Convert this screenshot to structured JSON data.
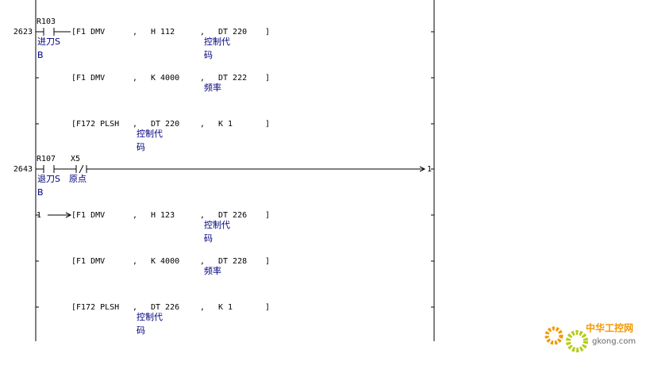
{
  "separator": ",",
  "close": "]",
  "rows": [
    {
      "step": "2623",
      "contacts": [
        {
          "label": "R103",
          "kind": "no",
          "comment": [
            "进刀S",
            "B"
          ]
        }
      ],
      "op": "[F1 DMV",
      "args": [
        {
          "text": "H 112"
        },
        {
          "text": "DT 220",
          "comment": [
            "控制代",
            "码"
          ]
        }
      ]
    },
    {
      "op": "[F1 DMV",
      "args": [
        {
          "text": "K 4000"
        },
        {
          "text": "DT 222",
          "comment": [
            "频率"
          ]
        }
      ]
    },
    {
      "op": "[F172 PLSH",
      "args": [
        {
          "text": "DT 220",
          "comment": [
            "控制代",
            "码"
          ]
        },
        {
          "text": "K 1"
        }
      ]
    },
    {
      "step": "2643",
      "contacts": [
        {
          "label": "R107",
          "kind": "no",
          "comment": [
            "退刀S",
            "B"
          ]
        },
        {
          "label": "X5",
          "kind": "nc",
          "comment": [
            "原点"
          ]
        }
      ],
      "jump": "1"
    },
    {
      "continuation": "1",
      "op": "[F1 DMV",
      "args": [
        {
          "text": "H 123"
        },
        {
          "text": "DT 226",
          "comment": [
            "控制代",
            "码"
          ]
        }
      ]
    },
    {
      "op": "[F1 DMV",
      "args": [
        {
          "text": "K 4000"
        },
        {
          "text": "DT 228",
          "comment": [
            "频率"
          ]
        }
      ]
    },
    {
      "op": "[F172 PLSH",
      "args": [
        {
          "text": "DT 226",
          "comment": [
            "控制代",
            "码"
          ]
        },
        {
          "text": "K 1"
        }
      ]
    }
  ],
  "watermark": {
    "name": "中华工控网",
    "url": "gkong.com"
  }
}
